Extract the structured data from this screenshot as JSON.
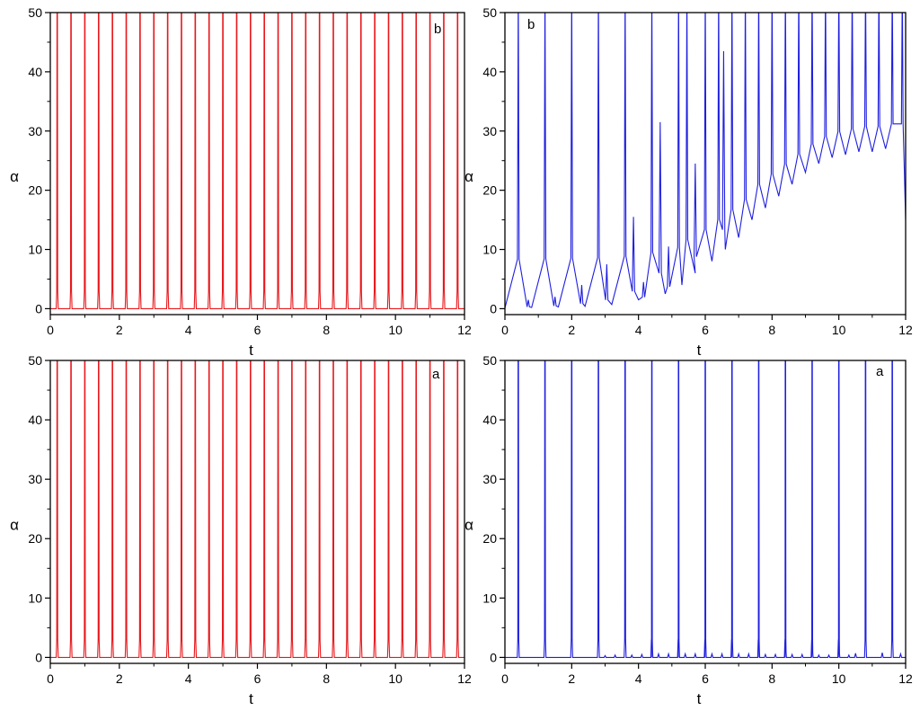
{
  "chart_data": [
    {
      "id": "top-left",
      "type": "line",
      "panel_label": "b",
      "xlabel": "t",
      "ylabel": "α",
      "xlim": [
        0,
        12
      ],
      "ylim": [
        -1,
        50
      ],
      "xticks": [
        "0",
        "2",
        "4",
        "6",
        "8",
        "10",
        "12"
      ],
      "yticks": [
        "0",
        "10",
        "20",
        "30",
        "40",
        "50"
      ],
      "color": "#e8181c",
      "series": [
        {
          "spike_times": [
            0.2,
            0.6,
            1.0,
            1.4,
            1.8,
            2.2,
            2.6,
            3.0,
            3.4,
            3.8,
            4.2,
            4.6,
            5.0,
            5.4,
            5.8,
            6.2,
            6.6,
            7.0,
            7.4,
            7.8,
            8.2,
            8.6,
            9.0,
            9.4,
            9.8,
            10.2,
            10.6,
            11.0,
            11.4,
            11.8
          ],
          "spike_peak": 50,
          "baseline": 0
        }
      ]
    },
    {
      "id": "top-right",
      "type": "line",
      "panel_label": "b",
      "xlabel": "t",
      "ylabel": "α",
      "xlim": [
        0,
        12
      ],
      "ylim": [
        -1,
        50
      ],
      "xticks": [
        "0",
        "2",
        "4",
        "6",
        "8",
        "10",
        "12"
      ],
      "yticks": [
        "0",
        "10",
        "20",
        "30",
        "40",
        "50"
      ],
      "color": "#1f1fe0",
      "series": [
        {
          "large_spike_times": [
            0.4,
            1.2,
            2.0,
            2.8,
            3.6,
            4.4,
            5.2,
            5.45,
            6.0,
            6.4,
            6.8,
            7.2,
            7.6,
            8.0,
            8.4,
            8.8,
            9.2,
            9.6,
            10.0,
            10.4,
            10.8,
            11.2,
            11.6,
            11.9
          ],
          "partial_peaks": [
            {
              "t": 0.7,
              "peak": 1.5
            },
            {
              "t": 1.5,
              "peak": 2
            },
            {
              "t": 2.3,
              "peak": 4
            },
            {
              "t": 3.05,
              "peak": 7.5
            },
            {
              "t": 3.85,
              "peak": 15.5
            },
            {
              "t": 4.15,
              "peak": 4.5
            },
            {
              "t": 4.65,
              "peak": 31.5
            },
            {
              "t": 4.9,
              "peak": 10.5
            },
            {
              "t": 5.7,
              "peak": 24.5
            },
            {
              "t": 6.55,
              "peak": 43.5
            }
          ],
          "troughs": [
            {
              "t": 0.8,
              "value": 0.2
            },
            {
              "t": 1.6,
              "value": 0.3
            },
            {
              "t": 2.4,
              "value": 0.4
            },
            {
              "t": 3.2,
              "value": 0.7
            },
            {
              "t": 4.0,
              "value": 1.5
            },
            {
              "t": 4.8,
              "value": 2.5
            },
            {
              "t": 5.3,
              "value": 4.0
            },
            {
              "t": 5.7,
              "value": 6.0
            },
            {
              "t": 6.2,
              "value": 8.0
            },
            {
              "t": 6.6,
              "value": 10.0
            },
            {
              "t": 7.0,
              "value": 12.0
            },
            {
              "t": 7.4,
              "value": 15.0
            },
            {
              "t": 7.8,
              "value": 17.0
            },
            {
              "t": 8.2,
              "value": 19.0
            },
            {
              "t": 8.6,
              "value": 21.0
            },
            {
              "t": 9.0,
              "value": 23.0
            },
            {
              "t": 9.4,
              "value": 24.5
            },
            {
              "t": 9.8,
              "value": 25.5
            },
            {
              "t": 10.2,
              "value": 26.0
            },
            {
              "t": 10.6,
              "value": 26.5
            },
            {
              "t": 11.0,
              "value": 26.5
            },
            {
              "t": 11.4,
              "value": 27.0
            },
            {
              "t": 12.0,
              "value": 15.0
            }
          ]
        }
      ]
    },
    {
      "id": "bottom-left",
      "type": "line",
      "panel_label": "a",
      "xlabel": "t",
      "ylabel": "α",
      "xlim": [
        0,
        12
      ],
      "ylim": [
        -1,
        50
      ],
      "xticks": [
        "0",
        "2",
        "4",
        "6",
        "8",
        "10",
        "12"
      ],
      "yticks": [
        "0",
        "10",
        "20",
        "30",
        "40",
        "50"
      ],
      "color": "#e8181c",
      "series": [
        {
          "spike_times": [
            0.2,
            0.6,
            1.0,
            1.4,
            1.8,
            2.2,
            2.6,
            3.0,
            3.4,
            3.8,
            4.2,
            4.6,
            5.0,
            5.4,
            5.8,
            6.2,
            6.6,
            7.0,
            7.4,
            7.8,
            8.2,
            8.6,
            9.0,
            9.4,
            9.8,
            10.2,
            10.6,
            11.0,
            11.4,
            11.8
          ],
          "spike_peak": 50,
          "baseline": 0
        }
      ]
    },
    {
      "id": "bottom-right",
      "type": "line",
      "panel_label": "a",
      "xlabel": "t",
      "ylabel": "α",
      "xlim": [
        0,
        12
      ],
      "ylim": [
        -1,
        50
      ],
      "xticks": [
        "0",
        "2",
        "4",
        "6",
        "8",
        "10",
        "12"
      ],
      "yticks": [
        "0",
        "10",
        "20",
        "30",
        "40",
        "50"
      ],
      "color": "#1f1fe0",
      "series": [
        {
          "spike_times": [
            0.4,
            1.2,
            2.0,
            2.8,
            3.6,
            4.4,
            5.2,
            6.0,
            6.8,
            7.6,
            8.4,
            9.2,
            10.0,
            10.8,
            11.6
          ],
          "spike_peak": 50,
          "baseline": 0,
          "small_bumps": [
            {
              "t": 3.0,
              "peak": 0.3
            },
            {
              "t": 3.3,
              "peak": 0.4
            },
            {
              "t": 3.8,
              "peak": 0.4
            },
            {
              "t": 4.1,
              "peak": 0.5
            },
            {
              "t": 4.42,
              "peak": 1.6
            },
            {
              "t": 4.6,
              "peak": 0.6
            },
            {
              "t": 4.9,
              "peak": 0.6
            },
            {
              "t": 5.22,
              "peak": 1.7
            },
            {
              "t": 5.4,
              "peak": 0.6
            },
            {
              "t": 5.7,
              "peak": 0.6
            },
            {
              "t": 6.02,
              "peak": 1.7
            },
            {
              "t": 6.2,
              "peak": 0.6
            },
            {
              "t": 6.5,
              "peak": 0.6
            },
            {
              "t": 6.82,
              "peak": 1.6
            },
            {
              "t": 7.0,
              "peak": 0.6
            },
            {
              "t": 7.3,
              "peak": 0.6
            },
            {
              "t": 7.62,
              "peak": 1.5
            },
            {
              "t": 7.8,
              "peak": 0.5
            },
            {
              "t": 8.1,
              "peak": 0.5
            },
            {
              "t": 8.42,
              "peak": 0.9
            },
            {
              "t": 8.6,
              "peak": 0.5
            },
            {
              "t": 8.9,
              "peak": 0.5
            },
            {
              "t": 9.22,
              "peak": 0.7
            },
            {
              "t": 9.4,
              "peak": 0.4
            },
            {
              "t": 9.7,
              "peak": 0.4
            },
            {
              "t": 10.02,
              "peak": 0.6
            },
            {
              "t": 10.3,
              "peak": 0.4
            },
            {
              "t": 10.5,
              "peak": 0.7
            },
            {
              "t": 11.3,
              "peak": 0.8
            },
            {
              "t": 11.85,
              "peak": 0.6
            }
          ]
        }
      ]
    }
  ]
}
